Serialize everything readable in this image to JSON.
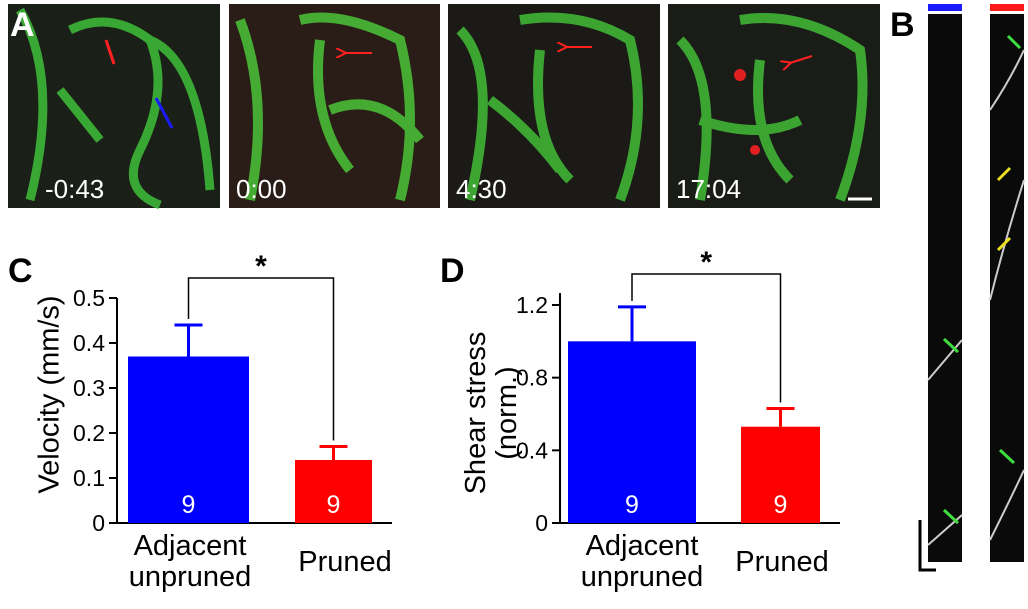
{
  "panel_labels": [
    "A",
    "B",
    "C",
    "D"
  ],
  "timestamps": [
    "-0:43",
    "0:00",
    "4:30",
    "17:04"
  ],
  "chart_data": [
    {
      "type": "bar",
      "ylabel": "Velocity (mm/s)",
      "categories": [
        "Adjacent unpruned",
        "Pruned"
      ],
      "values": [
        0.37,
        0.14
      ],
      "errors": [
        0.07,
        0.03
      ],
      "n": [
        9,
        9
      ],
      "colors": [
        "#0000ff",
        "#ff0000"
      ],
      "ylim": [
        0,
        0.5
      ],
      "yticks": [
        0,
        0.1,
        0.2,
        0.3,
        0.4,
        0.5
      ],
      "significance": "*"
    },
    {
      "type": "bar",
      "ylabel": "Shear stress (norm.)",
      "categories": [
        "Adjacent unpruned",
        "Pruned"
      ],
      "values": [
        1.0,
        0.53
      ],
      "errors": [
        0.19,
        0.1
      ],
      "n": [
        9,
        9
      ],
      "colors": [
        "#0000ff",
        "#ff0000"
      ],
      "ylim": [
        0,
        1.2
      ],
      "yticks": [
        0,
        0.4,
        0.8,
        1.2
      ],
      "significance": "*"
    }
  ]
}
